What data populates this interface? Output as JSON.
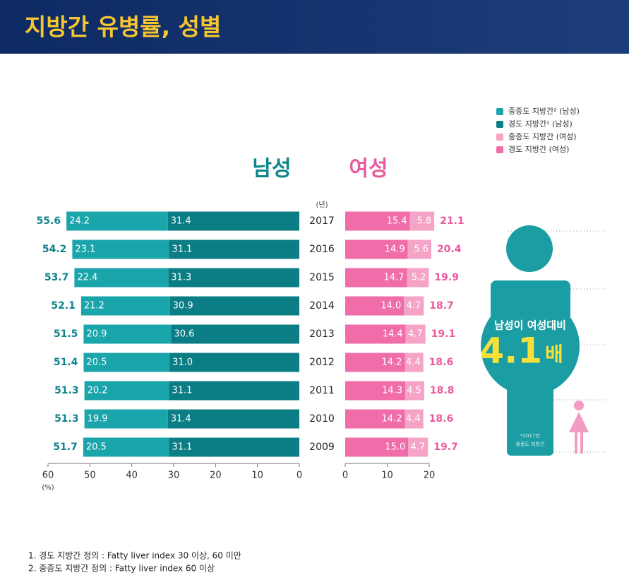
{
  "header": {
    "title": "지방간 유병률, 성별"
  },
  "chart_data": {
    "type": "butterfly",
    "categories": [
      2017,
      2016,
      2015,
      2014,
      2013,
      2012,
      2011,
      2010,
      2009
    ],
    "category_label": "(년)",
    "left": {
      "title": "남성",
      "title_color": "#0e858b",
      "xlim": [
        60,
        0
      ],
      "xticks": [
        60,
        50,
        40,
        30,
        20,
        10,
        0
      ],
      "xlabel": "(%)",
      "series": [
        {
          "name": "경도 지방간¹ (남성)",
          "color": "#0b7d84",
          "values": [
            31.4,
            31.1,
            31.3,
            30.9,
            30.6,
            31.0,
            31.1,
            31.4,
            31.1
          ],
          "value_labels": [
            "31.4",
            "31.1",
            "31.3",
            "30.9",
            "30.6",
            "31.0",
            "31.1",
            "31.4",
            "31.1"
          ]
        },
        {
          "name": "중증도 지방간² (남성)",
          "color": "#1aa5ab",
          "values": [
            24.2,
            23.1,
            22.4,
            21.2,
            20.9,
            20.5,
            20.2,
            19.9,
            20.5
          ]
        }
      ],
      "totals": [
        55.6,
        54.2,
        53.7,
        52.1,
        51.5,
        51.4,
        51.3,
        51.3,
        51.7
      ]
    },
    "right": {
      "title": "여성",
      "title_color": "#ea5a9e",
      "xlim": [
        0,
        20
      ],
      "xticks": [
        0,
        10,
        20
      ],
      "series": [
        {
          "name": "경도 지방간 (여성)",
          "color": "#f06daa",
          "values": [
            15.4,
            14.9,
            14.7,
            14.0,
            14.4,
            14.2,
            14.3,
            14.2,
            15.0
          ],
          "value_labels": [
            "15.4",
            "14.9",
            "14.7",
            "14.0",
            "14.4",
            "14.2",
            "14.3",
            "14.2",
            "15.0"
          ]
        },
        {
          "name": "중증도 지방간 (여성)",
          "color": "#f5a3c6",
          "values": [
            5.8,
            5.6,
            5.2,
            4.7,
            4.7,
            4.4,
            4.5,
            4.4,
            4.7
          ]
        }
      ],
      "totals": [
        21.1,
        20.4,
        19.9,
        18.7,
        19.1,
        18.6,
        18.8,
        18.6,
        19.7
      ]
    }
  },
  "callout": {
    "text": "남성이 여성대비",
    "value": 4.1,
    "unit": "배",
    "note": [
      "*2017년",
      "중증도 지방간"
    ]
  },
  "footnotes": [
    "1. 경도 지방간 정의 : Fatty liver index 30 이상, 60 미만",
    "2. 중증도 지방간 정의 : Fatty liver index 60 이상"
  ]
}
